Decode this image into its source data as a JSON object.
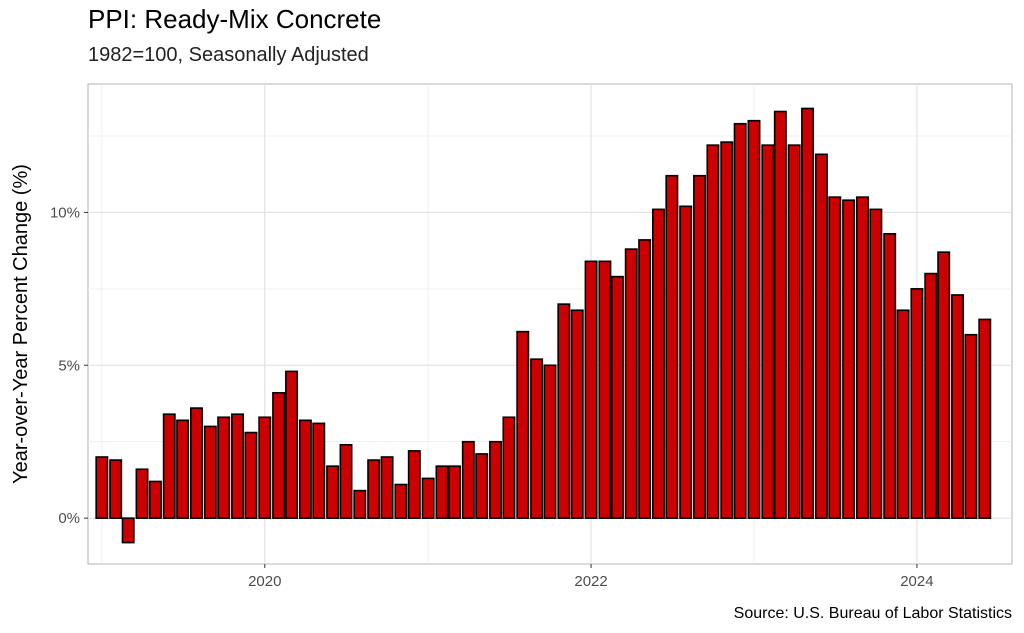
{
  "chart_data": {
    "type": "bar",
    "title": "PPI: Ready-Mix Concrete",
    "subtitle": "1982=100, Seasonally Adjusted",
    "ylabel": "Year-over-Year Percent Change (%)",
    "xlabel": "",
    "caption": "Source: U.S. Bureau of Labor Statistics",
    "bar_color": "#cc0000",
    "bar_outline": "#000000",
    "grid": true,
    "ylim": [
      -1.5,
      14.2
    ],
    "xlim": [
      "2018-12-01",
      "2024-08-01"
    ],
    "yticks": [
      {
        "value": 0,
        "label": "0%"
      },
      {
        "value": 5,
        "label": "5%"
      },
      {
        "value": 10,
        "label": "10%"
      }
    ],
    "xticks": [
      {
        "value": "2020-01-01",
        "label": "2020"
      },
      {
        "value": "2022-01-01",
        "label": "2022"
      },
      {
        "value": "2024-01-01",
        "label": "2024"
      }
    ],
    "start_month": "2019-01",
    "values": [
      2.0,
      1.9,
      -0.8,
      1.6,
      1.2,
      3.4,
      3.2,
      3.6,
      3.0,
      3.3,
      3.4,
      2.8,
      3.3,
      4.1,
      4.8,
      3.2,
      3.1,
      1.7,
      2.4,
      0.9,
      1.9,
      2.0,
      1.1,
      2.2,
      1.3,
      1.7,
      1.7,
      2.5,
      2.1,
      2.5,
      3.3,
      6.1,
      5.2,
      5.0,
      7.0,
      6.8,
      8.4,
      8.4,
      7.9,
      8.8,
      9.1,
      10.1,
      11.2,
      10.2,
      11.2,
      12.2,
      12.3,
      12.9,
      13.0,
      12.2,
      13.3,
      12.2,
      13.4,
      11.9,
      10.5,
      10.4,
      10.5,
      10.1,
      9.3,
      6.8,
      7.5,
      8.0,
      8.7,
      7.3,
      6.0,
      6.5
    ]
  }
}
